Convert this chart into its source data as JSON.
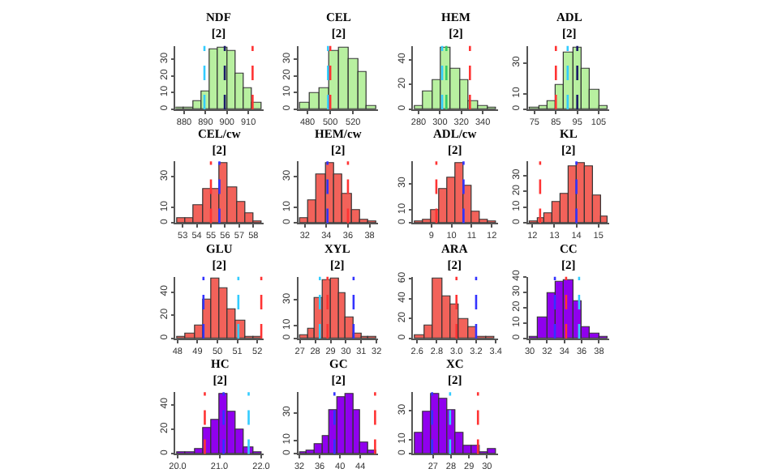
{
  "chart_data": [
    {
      "type": "histogram",
      "title": "NDF\n[2]",
      "bins": [
        876,
        880,
        884,
        888,
        892,
        896,
        900,
        904,
        908,
        912,
        916
      ],
      "values": [
        1,
        1,
        5,
        11,
        36,
        37,
        35,
        21,
        13,
        4
      ],
      "color": "#b8f0a0",
      "xlim": [
        876,
        917
      ],
      "xticks": [
        880,
        890,
        900,
        910
      ],
      "ylim": [
        0,
        38
      ],
      "yticks": [
        0,
        10,
        20,
        30
      ],
      "ref_lines": [
        {
          "axis": "x",
          "value": 889.5,
          "color": "#33ccff",
          "line_style": "dashed"
        },
        {
          "axis": "x",
          "value": 899,
          "color": "#1a1a66",
          "line_style": "dashed"
        },
        {
          "axis": "x",
          "value": 912,
          "color": "#ff3333",
          "line_style": "dashed"
        }
      ]
    },
    {
      "type": "histogram",
      "title": "CEL\n[2]",
      "bins": [
        473,
        481.5,
        490,
        498.5,
        507,
        515.5,
        524,
        532.5,
        541
      ],
      "values": [
        4,
        10,
        13,
        35,
        37,
        30,
        22,
        2
      ],
      "color": "#b8f0a0",
      "xlim": [
        472,
        542
      ],
      "xticks": [
        480,
        500,
        520
      ],
      "ylim": [
        0,
        38
      ],
      "yticks": [
        0,
        10,
        20,
        30
      ],
      "ref_lines": [
        {
          "axis": "x",
          "value": 498,
          "color": "#33ccff",
          "line_style": "dashed"
        },
        {
          "axis": "x",
          "value": 500,
          "color": "#ff3333",
          "line_style": "dashed"
        }
      ]
    },
    {
      "type": "histogram",
      "title": "HEM\n[2]",
      "bins": [
        276,
        284.5,
        293,
        301.5,
        310,
        318.5,
        327,
        335.5,
        344,
        352.5
      ],
      "values": [
        3,
        14,
        23,
        50,
        33,
        24,
        6,
        3,
        1
      ],
      "color": "#b8f0a0",
      "xlim": [
        275,
        354
      ],
      "xticks": [
        280,
        300,
        320,
        340
      ],
      "ylim": [
        0,
        51
      ],
      "yticks": [
        0,
        20,
        40
      ],
      "ref_lines": [
        {
          "axis": "x",
          "value": 302,
          "color": "#33ccff",
          "line_style": "dashed"
        },
        {
          "axis": "x",
          "value": 306,
          "color": "#33cc66",
          "line_style": "dashed"
        },
        {
          "axis": "x",
          "value": 328,
          "color": "#ff3333",
          "line_style": "dashed"
        }
      ]
    },
    {
      "type": "histogram",
      "title": "ADL\n[2]",
      "bins": [
        73,
        77,
        81,
        85,
        89,
        93,
        97,
        101,
        105,
        109
      ],
      "values": [
        1,
        2,
        5,
        16,
        37,
        40,
        26,
        13,
        2
      ],
      "color": "#b8f0a0",
      "xlim": [
        72,
        110
      ],
      "xticks": [
        75,
        85,
        95,
        105
      ],
      "ylim": [
        0,
        41
      ],
      "yticks": [
        0,
        10,
        30
      ],
      "ref_lines": [
        {
          "axis": "x",
          "value": 85,
          "color": "#ff3333",
          "line_style": "dashed"
        },
        {
          "axis": "x",
          "value": 90.5,
          "color": "#33ccff",
          "line_style": "dashed"
        },
        {
          "axis": "x",
          "value": 95,
          "color": "#1a1a66",
          "line_style": "dashed"
        }
      ]
    },
    {
      "type": "histogram",
      "title": "CEL/cw\n[2]",
      "bins": [
        52.6,
        53.2,
        53.8,
        54.4,
        55.0,
        55.6,
        56.2,
        56.8,
        57.4,
        58.0,
        58.6
      ],
      "values": [
        3,
        3,
        12,
        22,
        22,
        39,
        23,
        14,
        6,
        1
      ],
      "color": "#f2625a",
      "xlim": [
        52.5,
        58.7
      ],
      "xticks": [
        53,
        54,
        55,
        56,
        57,
        58
      ],
      "ylim": [
        0,
        40
      ],
      "yticks": [
        0,
        10,
        30
      ],
      "ref_lines": [
        {
          "axis": "x",
          "value": 55.0,
          "color": "#ff3333",
          "line_style": "dashed"
        },
        {
          "axis": "x",
          "value": 55.6,
          "color": "#3333ff",
          "line_style": "dashed"
        }
      ]
    },
    {
      "type": "histogram",
      "title": "HEM/cw\n[2]",
      "bins": [
        31.5,
        32.3,
        33.1,
        33.9,
        34.7,
        35.5,
        36.3,
        37.1,
        37.9,
        38.7
      ],
      "values": [
        3,
        15,
        32,
        39,
        32,
        19,
        8,
        2,
        1
      ],
      "color": "#f2625a",
      "xlim": [
        31.4,
        38.8
      ],
      "xticks": [
        32,
        34,
        36,
        38
      ],
      "ylim": [
        0,
        40
      ],
      "yticks": [
        0,
        10,
        30
      ],
      "ref_lines": [
        {
          "axis": "x",
          "value": 34.1,
          "color": "#3333ff",
          "line_style": "dashed"
        },
        {
          "axis": "x",
          "value": 36,
          "color": "#ff3333",
          "line_style": "dashed"
        }
      ]
    },
    {
      "type": "histogram",
      "title": "ADL/cw\n[2]",
      "bins": [
        8.2,
        8.6,
        9.0,
        9.4,
        9.8,
        10.2,
        10.6,
        11.0,
        11.4,
        11.8,
        12.2
      ],
      "values": [
        1,
        2,
        10,
        26,
        35,
        46,
        28,
        9,
        3,
        1
      ],
      "color": "#f2625a",
      "xlim": [
        8.1,
        12.3
      ],
      "xticks": [
        9,
        10,
        11,
        12
      ],
      "ylim": [
        0,
        47
      ],
      "yticks": [
        0,
        10,
        30
      ],
      "ref_lines": [
        {
          "axis": "x",
          "value": 9.25,
          "color": "#ff3333",
          "line_style": "dashed"
        },
        {
          "axis": "x",
          "value": 10.6,
          "color": "#3333ff",
          "line_style": "dashed"
        }
      ]
    },
    {
      "type": "histogram",
      "title": "KL\n[2]",
      "bins": [
        11.85,
        12.21,
        12.57,
        12.93,
        13.29,
        13.65,
        14.01,
        14.37,
        14.73,
        15.09,
        15.45
      ],
      "values": [
        1,
        3,
        6,
        13,
        19,
        36,
        38,
        36,
        18,
        4
      ],
      "color": "#f2625a",
      "xlim": [
        11.8,
        15.5
      ],
      "xticks": [
        12,
        13,
        14,
        15
      ],
      "ylim": [
        0,
        39
      ],
      "yticks": [
        0,
        10,
        20,
        30
      ],
      "ref_lines": [
        {
          "axis": "x",
          "value": 12.35,
          "color": "#ff3333",
          "line_style": "dashed"
        },
        {
          "axis": "x",
          "value": 14.0,
          "color": "#3333ff",
          "line_style": "dashed"
        }
      ]
    },
    {
      "type": "histogram",
      "title": "GLU\n[2]",
      "bins": [
        48.0,
        48.42,
        48.84,
        49.26,
        49.68,
        50.1,
        50.52,
        50.94,
        51.36,
        51.78,
        52.2
      ],
      "values": [
        2,
        4,
        11,
        33,
        52,
        43,
        25,
        15,
        2,
        1
      ],
      "color": "#f2625a",
      "xlim": [
        47.9,
        52.3
      ],
      "xticks": [
        48,
        49,
        50,
        51,
        52
      ],
      "ylim": [
        0,
        53
      ],
      "yticks": [
        0,
        20,
        40
      ],
      "ref_lines": [
        {
          "axis": "x",
          "value": 49.3,
          "color": "#3333ff",
          "line_style": "dashed"
        },
        {
          "axis": "x",
          "value": 51.05,
          "color": "#33ccff",
          "line_style": "dashed"
        },
        {
          "axis": "x",
          "value": 52.2,
          "color": "#ff3333",
          "line_style": "dashed"
        }
      ]
    },
    {
      "type": "histogram",
      "title": "XYL\n[2]",
      "bins": [
        27.0,
        27.5,
        28.0,
        28.5,
        29.0,
        29.5,
        30.0,
        30.5,
        31.0,
        31.5,
        32.0
      ],
      "values": [
        2,
        8,
        31,
        45,
        47,
        36,
        17,
        4,
        1,
        1
      ],
      "color": "#f2625a",
      "xlim": [
        26.9,
        32.1
      ],
      "xticks": [
        27,
        28,
        29,
        30,
        31,
        32
      ],
      "ylim": [
        0,
        48
      ],
      "yticks": [
        0,
        10,
        30
      ],
      "ref_lines": [
        {
          "axis": "x",
          "value": 28.3,
          "color": "#33ccff",
          "line_style": "dashed"
        },
        {
          "axis": "x",
          "value": 28.8,
          "color": "#ff3333",
          "line_style": "dashed"
        },
        {
          "axis": "x",
          "value": 30.5,
          "color": "#3333ff",
          "line_style": "dashed"
        }
      ]
    },
    {
      "type": "histogram",
      "title": "ARA\n[2]",
      "bins": [
        2.58,
        2.67,
        2.76,
        2.85,
        2.94,
        3.03,
        3.12,
        3.21,
        3.3,
        3.39
      ],
      "values": [
        4,
        13,
        61,
        42,
        35,
        20,
        12,
        2,
        2
      ],
      "color": "#f2625a",
      "xlim": [
        2.56,
        3.42
      ],
      "xticks": [
        {
          "value": 2.6,
          "label": "2.6"
        },
        {
          "value": 2.8,
          "label": "2.8"
        },
        {
          "value": 3.0,
          "label": "3.0"
        },
        {
          "value": 3.2,
          "label": "3.2"
        },
        {
          "value": 3.4,
          "label": "3.4"
        }
      ],
      "ylim": [
        0,
        62
      ],
      "yticks": [
        0,
        20,
        40,
        60
      ],
      "ref_lines": [
        {
          "axis": "x",
          "value": 3.0,
          "color": "#ff3333",
          "line_style": "dashed"
        },
        {
          "axis": "x",
          "value": 3.2,
          "color": "#3333ff",
          "line_style": "dashed"
        }
      ]
    },
    {
      "type": "histogram",
      "title": "CC\n[2]",
      "bins": [
        30,
        31,
        32,
        33,
        34,
        35,
        36,
        37,
        38,
        39
      ],
      "values": [
        1,
        14,
        30,
        37,
        38,
        24,
        7,
        3,
        1
      ],
      "color": "#9000ee",
      "xlim": [
        29.8,
        39.2
      ],
      "xticks": [
        30,
        32,
        34,
        36,
        38
      ],
      "ylim": [
        0,
        40
      ],
      "yticks": [
        0,
        10,
        20,
        30,
        40
      ],
      "ref_lines": [
        {
          "axis": "x",
          "value": 32.9,
          "color": "#3333ff",
          "line_style": "dashed"
        },
        {
          "axis": "x",
          "value": 34.2,
          "color": "#ff3333",
          "line_style": "dashed"
        },
        {
          "axis": "x",
          "value": 35.7,
          "color": "#33ccff",
          "line_style": "dashed"
        }
      ]
    },
    {
      "type": "histogram",
      "title": "HC\n[2]",
      "bins": [
        20.0,
        20.2,
        20.4,
        20.6,
        20.8,
        21.0,
        21.2,
        21.4,
        21.6,
        21.8,
        22.0
      ],
      "values": [
        1,
        1,
        4,
        21,
        28,
        49,
        34,
        20,
        5,
        2
      ],
      "color": "#9000ee",
      "xlim": [
        19.95,
        22.05
      ],
      "xticks": [
        {
          "value": 20.0,
          "label": "20.0"
        },
        {
          "value": 21.0,
          "label": "21.0"
        },
        {
          "value": 22.0,
          "label": "22.0"
        }
      ],
      "ylim": [
        0,
        50
      ],
      "yticks": [
        0,
        20,
        40
      ],
      "ref_lines": [
        {
          "axis": "x",
          "value": 20.65,
          "color": "#ff3333",
          "line_style": "dashed"
        },
        {
          "axis": "x",
          "value": 21.1,
          "color": "#3333ff",
          "line_style": "dashed"
        },
        {
          "axis": "x",
          "value": 21.7,
          "color": "#33ccff",
          "line_style": "dashed"
        }
      ]
    },
    {
      "type": "histogram",
      "title": "GC\n[2]",
      "bins": [
        32,
        33.5,
        35,
        36.5,
        38,
        39.5,
        41,
        42.5,
        44,
        45.5,
        47
      ],
      "values": [
        1,
        2,
        7,
        13,
        32,
        42,
        44,
        32,
        8,
        3
      ],
      "color": "#9000ee",
      "xlim": [
        31.8,
        47.5
      ],
      "xticks": [
        32,
        36,
        40,
        44
      ],
      "ylim": [
        0,
        45
      ],
      "yticks": [
        0,
        10,
        30
      ],
      "ref_lines": [
        {
          "axis": "x",
          "value": 38.9,
          "color": "#3333ff",
          "line_style": "dashed"
        },
        {
          "axis": "x",
          "value": 46.9,
          "color": "#ff3333",
          "line_style": "dashed"
        }
      ]
    },
    {
      "type": "histogram",
      "title": "XC\n[2]",
      "bins": [
        26.0,
        26.45,
        26.9,
        27.35,
        27.8,
        28.25,
        28.7,
        29.15,
        29.6,
        30.05,
        30.5
      ],
      "values": [
        15,
        29,
        42,
        39,
        31,
        15,
        6,
        6,
        1,
        3
      ],
      "color": "#9000ee",
      "xlim": [
        25.9,
        30.6
      ],
      "xticks": [
        27,
        28,
        29,
        30
      ],
      "ylim": [
        0,
        43
      ],
      "yticks": [
        0,
        10,
        30
      ],
      "ref_lines": [
        {
          "axis": "x",
          "value": 26.95,
          "color": "#3333ff",
          "line_style": "dashed"
        },
        {
          "axis": "x",
          "value": 27.95,
          "color": "#33ccff",
          "line_style": "dashed"
        },
        {
          "axis": "x",
          "value": 29.5,
          "color": "#ff3333",
          "line_style": "dashed"
        }
      ]
    }
  ]
}
